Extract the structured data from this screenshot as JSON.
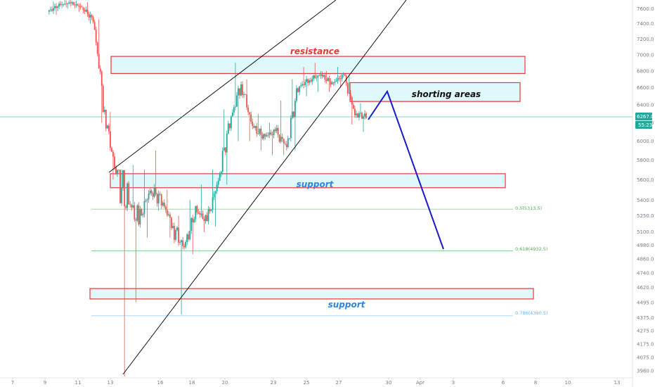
{
  "colors": {
    "up": "#26a69a",
    "down": "#ef5350",
    "zone_fill": "#dff8fb",
    "zone_border": "#e53935",
    "resistance_text": "#e53935",
    "support_text": "#2e86de",
    "shorting_text": "#111111",
    "projection": "#1a1ac8",
    "channel": "#111111",
    "fib_green": "#4caf50",
    "fib_blue": "#64b5f6",
    "price_line": "#26a69a",
    "axis_text": "#787b86",
    "badge_bg": "#26a69a"
  },
  "price_axis": {
    "ticks": [
      "7600.0",
      "7400.0",
      "7200.0",
      "7000.0",
      "6800.0",
      "6600.0",
      "6400.0",
      "6200.0",
      "6000.0",
      "5800.0",
      "5600.0",
      "5400.0",
      "5250.0",
      "5100.0",
      "4980.0",
      "4860.0",
      "4740.0",
      "4620.0",
      "4495.0",
      "4375.0",
      "4275.0",
      "4175.0",
      "4075.0",
      "3980.0"
    ],
    "current_price": "6267.0",
    "countdown": "55:23"
  },
  "date_axis": {
    "ticks": [
      "7",
      "9",
      "11",
      "13",
      "16",
      "18",
      "20",
      "23",
      "25",
      "27",
      "30",
      "Apr",
      "3",
      "6",
      "8",
      "10",
      "13"
    ]
  },
  "annotations": {
    "resistance": "resistance",
    "shorting": "shorting areas",
    "support_upper": "support",
    "support_lower": "support",
    "fib_05": "0.5(5313.5)",
    "fib_0618": "0.618(4932.5)",
    "fib_0786": "0.786(4390.5)"
  },
  "chart_data": {
    "type": "candlestick",
    "title": "",
    "xlabel": "",
    "ylabel": "",
    "x_range": [
      "Mar 7",
      "Apr 13"
    ],
    "y_range": [
      3930,
      7720
    ],
    "y_scale": "log",
    "grid": false,
    "series": [
      {
        "values": [
          [
            7560,
            7700,
            7520,
            7650
          ],
          [
            7650,
            7720,
            7600,
            7680
          ],
          [
            7680,
            7710,
            7560,
            7620
          ],
          [
            7620,
            7690,
            7400,
            7450
          ],
          [
            7450,
            7460,
            6200,
            6300
          ],
          [
            6300,
            6320,
            5600,
            5650
          ],
          [
            5650,
            5700,
            3940,
            5400
          ],
          [
            5400,
            5750,
            4500,
            5200
          ],
          [
            5200,
            5700,
            5050,
            5500
          ],
          [
            5500,
            5900,
            5300,
            5400
          ],
          [
            5400,
            5500,
            5050,
            5150
          ],
          [
            5150,
            5250,
            4400,
            4950
          ],
          [
            4950,
            5400,
            4900,
            5300
          ],
          [
            5300,
            5550,
            5100,
            5200
          ],
          [
            5200,
            5700,
            5150,
            5600
          ],
          [
            5600,
            6350,
            5550,
            6200
          ],
          [
            6200,
            6900,
            6000,
            6650
          ],
          [
            6650,
            6700,
            6000,
            6150
          ],
          [
            6150,
            6300,
            5900,
            6050
          ],
          [
            6050,
            6200,
            5850,
            6100
          ],
          [
            6100,
            6450,
            5850,
            5950
          ],
          [
            5950,
            6700,
            5900,
            6600
          ],
          [
            6600,
            6850,
            6500,
            6700
          ],
          [
            6700,
            6900,
            6550,
            6750
          ],
          [
            6750,
            6800,
            6550,
            6650
          ],
          [
            6650,
            6850,
            6600,
            6750
          ],
          [
            6750,
            6760,
            6180,
            6300
          ],
          [
            6300,
            6420,
            6100,
            6267
          ]
        ],
        "format": "[open, high, low, close]"
      }
    ],
    "zones": [
      {
        "label": "resistance",
        "price_from": 6770,
        "price_to": 6980
      },
      {
        "label": "shorting areas",
        "price_from": 6440,
        "price_to": 6660
      },
      {
        "label": "support",
        "price_from": 5520,
        "price_to": 5660
      },
      {
        "label": "support",
        "price_from": 4525,
        "price_to": 4610
      }
    ],
    "fib_levels": [
      {
        "ratio": "0.5",
        "price": 5313.5
      },
      {
        "ratio": "0.618",
        "price": 4932.5
      },
      {
        "ratio": "0.786",
        "price": 4390.5
      }
    ],
    "projection": [
      6300,
      6580,
      4932.5
    ]
  }
}
